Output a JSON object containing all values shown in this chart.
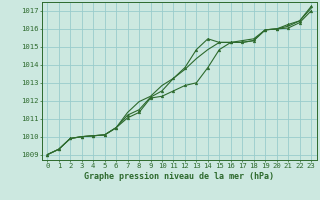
{
  "title": "Graphe pression niveau de la mer (hPa)",
  "bg_color": "#cce8e0",
  "grid_color": "#99cccc",
  "line_color": "#2d6a2d",
  "marker_color": "#2d6a2d",
  "x_ticks": [
    0,
    1,
    2,
    3,
    4,
    5,
    6,
    7,
    8,
    9,
    10,
    11,
    12,
    13,
    14,
    15,
    16,
    17,
    18,
    19,
    20,
    21,
    22,
    23
  ],
  "y_ticks": [
    1009,
    1010,
    1011,
    1012,
    1013,
    1014,
    1015,
    1016,
    1017
  ],
  "xlim": [
    -0.5,
    23.5
  ],
  "ylim": [
    1008.7,
    1017.5
  ],
  "series1": [
    1009.0,
    1009.3,
    1009.9,
    1010.0,
    1010.05,
    1010.1,
    1010.5,
    1011.05,
    1011.35,
    1012.15,
    1012.25,
    1012.55,
    1012.85,
    1013.0,
    1013.85,
    1014.85,
    1015.25,
    1015.25,
    1015.35,
    1015.95,
    1016.0,
    1016.05,
    1016.35,
    1017.0
  ],
  "series2": [
    1009.0,
    1009.3,
    1009.9,
    1010.0,
    1010.05,
    1010.1,
    1010.5,
    1011.35,
    1011.95,
    1012.25,
    1012.85,
    1013.25,
    1013.75,
    1014.35,
    1014.85,
    1015.25,
    1015.25,
    1015.25,
    1015.35,
    1015.95,
    1016.0,
    1016.15,
    1016.45,
    1017.15
  ],
  "series3": [
    1009.0,
    1009.3,
    1009.9,
    1010.0,
    1010.05,
    1010.1,
    1010.5,
    1011.2,
    1011.5,
    1012.2,
    1012.55,
    1013.25,
    1013.85,
    1014.85,
    1015.45,
    1015.25,
    1015.25,
    1015.35,
    1015.45,
    1015.95,
    1016.0,
    1016.25,
    1016.45,
    1017.25
  ],
  "ylabel_fontsize": 5.2,
  "xlabel_fontsize": 5.2,
  "title_fontsize": 6.0
}
